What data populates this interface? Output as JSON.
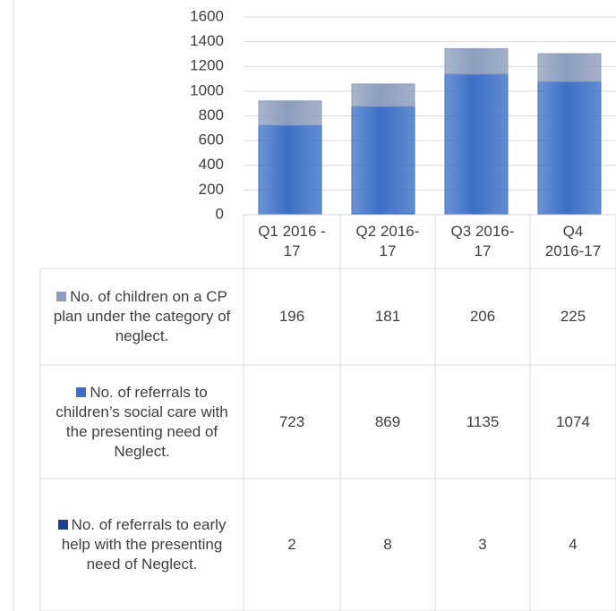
{
  "chart_data": {
    "type": "bar",
    "stacked": true,
    "categories": [
      "Q1 2016 - 17",
      "Q2 2016-17",
      "Q3 2016-17",
      "Q4 2016-17"
    ],
    "series": [
      {
        "name": "No. of children on a CP plan under the category of neglect.",
        "color": "#8c9dbd",
        "values": [
          196,
          181,
          206,
          225
        ]
      },
      {
        "name": "No. of referrals to children’s social care with the presenting need of Neglect.",
        "color": "#3c6fc6",
        "values": [
          723,
          869,
          1135,
          1074
        ]
      },
      {
        "name": "No. of referrals to early help with the presenting need of Neglect.",
        "color": "#1f3f8f",
        "values": [
          2,
          8,
          3,
          4
        ]
      }
    ],
    "ylim": [
      0,
      1600
    ],
    "yticks": [
      0,
      200,
      400,
      600,
      800,
      1000,
      1200,
      1400,
      1600
    ],
    "grid": true
  }
}
